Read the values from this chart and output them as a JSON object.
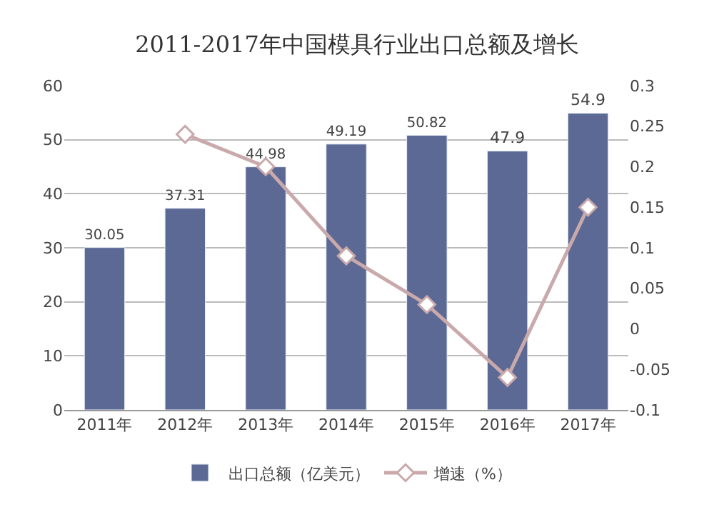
{
  "chart_data": {
    "type": "bar",
    "title": "2011-2017年中国模具行业出口总额及增长",
    "categories": [
      "2011年",
      "2012年",
      "2013年",
      "2014年",
      "2015年",
      "2016年",
      "2017年"
    ],
    "series": [
      {
        "name": "出口总额（亿美元）",
        "color": "#5b6994",
        "values": [
          30.05,
          37.31,
          44.98,
          49.19,
          50.82,
          47.9,
          54.9
        ],
        "value_labels": [
          "30.05",
          "37.31",
          "44.98",
          "49.19",
          "50.82",
          "47.9",
          "54.9"
        ]
      },
      {
        "name": "增速（%）",
        "type": "line",
        "axis": "y2",
        "color": "#c9a9ab",
        "marker": "diamond",
        "values": [
          null,
          0.24,
          0.2,
          0.09,
          0.03,
          -0.06,
          0.15
        ]
      }
    ],
    "ylim": [
      0,
      60
    ],
    "yticks": [
      0,
      10,
      20,
      30,
      40,
      50,
      60
    ],
    "y2lim": [
      -0.1,
      0.3
    ],
    "y2ticks": [
      -0.1,
      -0.05,
      0,
      0.05,
      0.1,
      0.15,
      0.2,
      0.25,
      0.3
    ],
    "grid": "y",
    "legend": "bottom"
  }
}
